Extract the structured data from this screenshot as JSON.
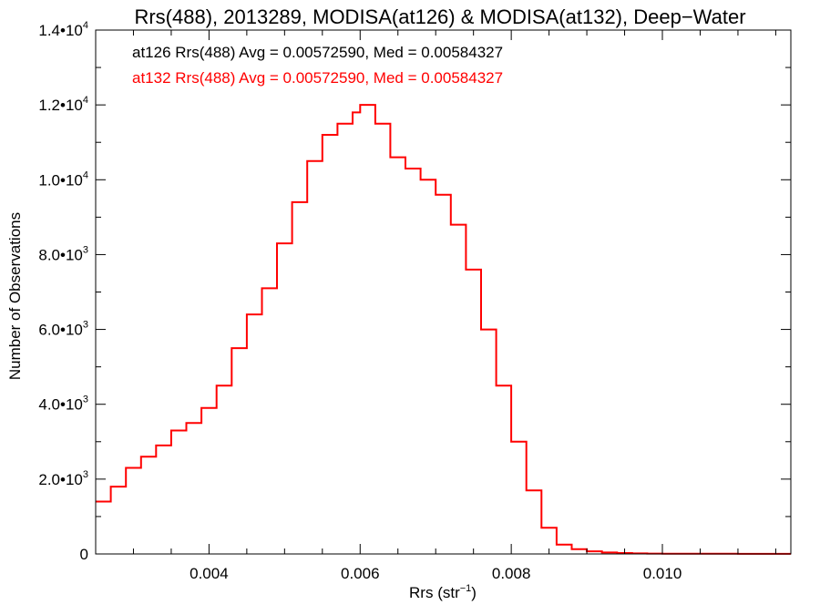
{
  "chart_data": {
    "type": "line",
    "title": "Rrs(488), 2013289, MODISA(at126) & MODISA(at132), Deep−Water",
    "xlabel": "Rrs (str",
    "xlabel_sup": "−1",
    "xlabel_close": ")",
    "ylabel": "Number of Observations",
    "xlim": [
      0.0025,
      0.0117
    ],
    "ylim": [
      0,
      14000
    ],
    "x_ticks": [
      {
        "value": 0.004,
        "label": "0.004"
      },
      {
        "value": 0.006,
        "label": "0.006"
      },
      {
        "value": 0.008,
        "label": "0.008"
      },
      {
        "value": 0.01,
        "label": "0.010"
      }
    ],
    "y_ticks": [
      {
        "value": 0,
        "label": "0",
        "sup": ""
      },
      {
        "value": 2000,
        "label": "2.0•10",
        "sup": "3"
      },
      {
        "value": 4000,
        "label": "4.0•10",
        "sup": "3"
      },
      {
        "value": 6000,
        "label": "6.0•10",
        "sup": "3"
      },
      {
        "value": 8000,
        "label": "8.0•10",
        "sup": "3"
      },
      {
        "value": 10000,
        "label": "1.0•10",
        "sup": "4"
      },
      {
        "value": 12000,
        "label": "1.2•10",
        "sup": "4"
      },
      {
        "value": 14000,
        "label": "1.4•10",
        "sup": "4"
      }
    ],
    "annotations": [
      {
        "text": "at126 Rrs(488) Avg = 0.00572590, Med = 0.00584327",
        "color": "#000000"
      },
      {
        "text": "at132 Rrs(488) Avg = 0.00572590, Med = 0.00584327",
        "color": "#ff0000"
      }
    ],
    "series": [
      {
        "color": "#ff0000",
        "style": "step",
        "x": [
          0.0025,
          0.0027,
          0.0029,
          0.0031,
          0.0033,
          0.0035,
          0.0037,
          0.0039,
          0.0041,
          0.0043,
          0.0045,
          0.0047,
          0.0049,
          0.0051,
          0.0053,
          0.0055,
          0.0057,
          0.0059,
          0.006,
          0.0062,
          0.0064,
          0.0066,
          0.0068,
          0.007,
          0.0072,
          0.0074,
          0.0076,
          0.0078,
          0.008,
          0.0082,
          0.0084,
          0.0086,
          0.0088,
          0.009,
          0.0092,
          0.0094,
          0.0096,
          0.0098,
          0.01,
          0.0105,
          0.011,
          0.0117
        ],
        "y": [
          1400,
          1800,
          2300,
          2600,
          2900,
          3300,
          3500,
          3900,
          4500,
          5500,
          6400,
          7100,
          8300,
          9400,
          10500,
          11200,
          11500,
          11800,
          12000,
          11500,
          10600,
          10300,
          10000,
          9600,
          8800,
          7600,
          6000,
          4500,
          3000,
          1700,
          700,
          250,
          130,
          70,
          40,
          25,
          15,
          10,
          8,
          5,
          3,
          2
        ]
      }
    ],
    "grid": false,
    "legend": "none"
  }
}
